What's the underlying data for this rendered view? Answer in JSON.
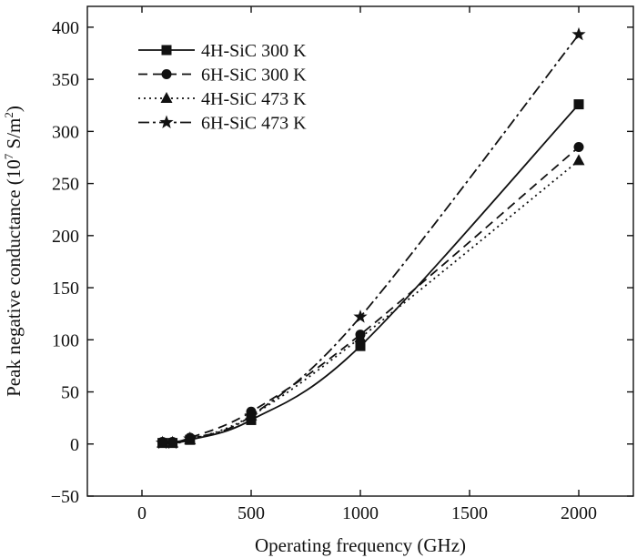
{
  "chart_data": {
    "type": "line",
    "xlabel": "Operating frequency (GHz)",
    "ylabel": "Peak negative conductance (10",
    "ylabel_sup1": "7",
    "ylabel_mid": " S/m",
    "ylabel_sup2": "2",
    "ylabel_end": ")",
    "xlim": [
      -250,
      2250
    ],
    "ylim": [
      -50,
      420
    ],
    "xticks": [
      0,
      500,
      1000,
      1500,
      2000
    ],
    "yticks": [
      -50,
      0,
      50,
      100,
      150,
      200,
      250,
      300,
      350,
      400
    ],
    "grid": false,
    "legend_position": "top-left",
    "x": [
      94,
      140,
      220,
      500,
      1000,
      2000
    ],
    "series": [
      {
        "name": "4H-SiC 300 K",
        "marker": "square",
        "dash": "solid",
        "values": [
          1,
          1,
          4,
          23,
          94,
          326
        ]
      },
      {
        "name": "6H-SiC 300 K",
        "marker": "circle",
        "dash": "dashed",
        "values": [
          2,
          2,
          6,
          31,
          105,
          285
        ]
      },
      {
        "name": "4H-SiC 473 K",
        "marker": "triangle",
        "dash": "dotted",
        "values": [
          1,
          1,
          4,
          27,
          102,
          272
        ]
      },
      {
        "name": "6H-SiC 473 K",
        "marker": "star",
        "dash": "dashdot",
        "values": [
          1,
          1,
          5,
          27,
          122,
          393
        ]
      }
    ]
  }
}
